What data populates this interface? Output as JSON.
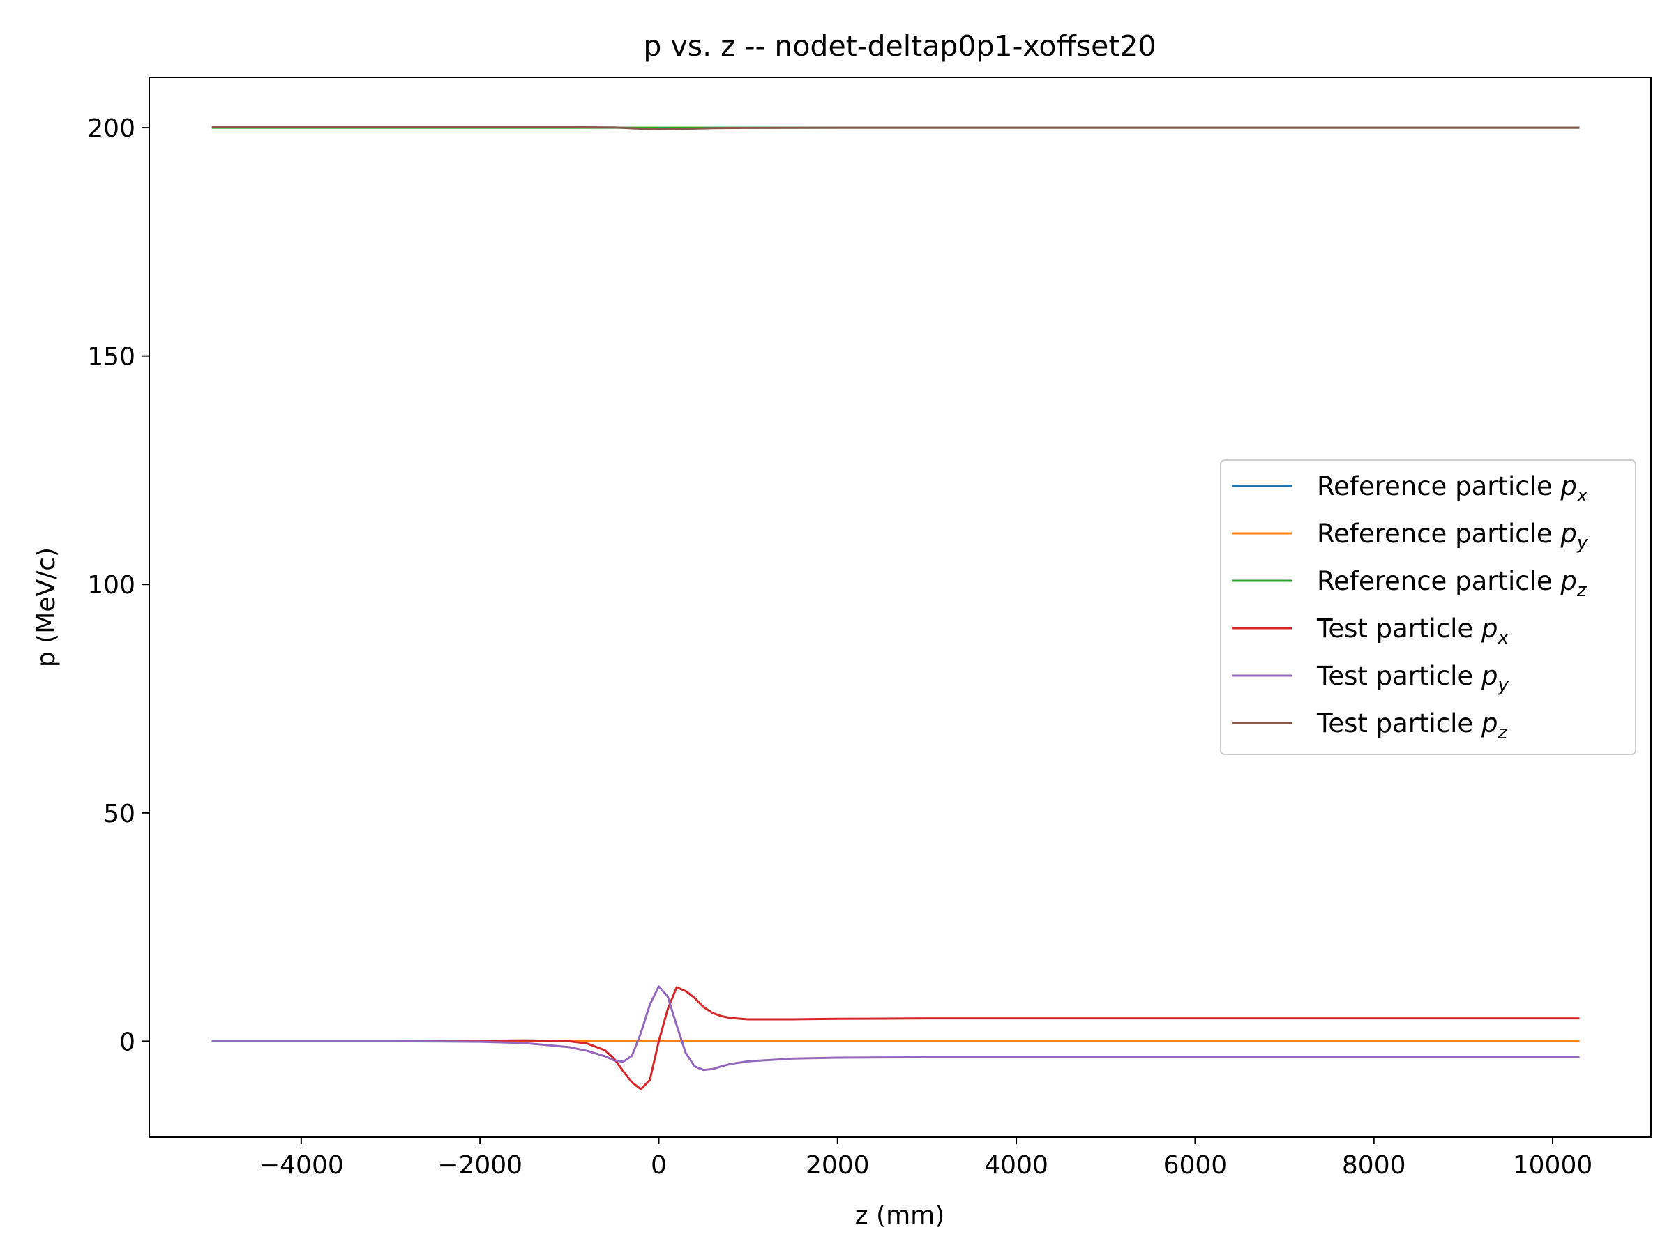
{
  "chart_data": {
    "type": "line",
    "title": "p vs. z -- nodet-deltap0p1-xoffset20",
    "xlabel": "z (mm)",
    "ylabel": "p (MeV/c)",
    "xlim": [
      -5700,
      11100
    ],
    "ylim": [
      -21,
      211
    ],
    "xticks": [
      -4000,
      -2000,
      0,
      2000,
      4000,
      6000,
      8000,
      10000
    ],
    "xtick_labels": [
      "−4000",
      "−2000",
      "0",
      "2000",
      "4000",
      "6000",
      "8000",
      "10000"
    ],
    "yticks": [
      0,
      50,
      100,
      150,
      200
    ],
    "ytick_labels": [
      "0",
      "50",
      "100",
      "150",
      "200"
    ],
    "grid": false,
    "legend_position": "center-right",
    "series": [
      {
        "name": "Reference particle p",
        "subscript": "x",
        "color": "#1f77b4",
        "x": [
          -5000,
          10300
        ],
        "y": [
          0,
          0
        ]
      },
      {
        "name": "Reference particle p",
        "subscript": "y",
        "color": "#ff7f0e",
        "x": [
          -5000,
          10300
        ],
        "y": [
          0,
          0
        ]
      },
      {
        "name": "Reference particle p",
        "subscript": "z",
        "color": "#2ca02c",
        "x": [
          -5000,
          10300
        ],
        "y": [
          200,
          200
        ]
      },
      {
        "name": "Test particle p",
        "subscript": "x",
        "color": "#d62728",
        "x": [
          -5000,
          -3000,
          -2000,
          -1500,
          -1000,
          -800,
          -600,
          -500,
          -400,
          -300,
          -200,
          -100,
          0,
          100,
          200,
          300,
          400,
          500,
          600,
          700,
          800,
          1000,
          1500,
          2000,
          3000,
          4000,
          6000,
          8000,
          10300
        ],
        "y": [
          0,
          0,
          0.1,
          0.2,
          0,
          -0.5,
          -2,
          -3.8,
          -6.5,
          -9,
          -10.5,
          -8.5,
          0,
          7,
          11.8,
          11,
          9.5,
          7.5,
          6.2,
          5.5,
          5.1,
          4.8,
          4.8,
          4.9,
          5,
          5,
          5,
          5,
          5
        ]
      },
      {
        "name": "Test particle p",
        "subscript": "y",
        "color": "#9467bd",
        "x": [
          -5000,
          -3000,
          -2000,
          -1500,
          -1000,
          -800,
          -600,
          -500,
          -400,
          -300,
          -200,
          -100,
          0,
          100,
          200,
          300,
          400,
          500,
          600,
          700,
          800,
          1000,
          1500,
          2000,
          3000,
          4000,
          6000,
          8000,
          10300
        ],
        "y": [
          0,
          0,
          -0.1,
          -0.4,
          -1.3,
          -2.1,
          -3.3,
          -4.2,
          -4.5,
          -3.2,
          1.8,
          8,
          12,
          9.8,
          3.5,
          -2.5,
          -5.5,
          -6.3,
          -6.1,
          -5.5,
          -5,
          -4.4,
          -3.8,
          -3.6,
          -3.5,
          -3.5,
          -3.5,
          -3.5,
          -3.5
        ]
      },
      {
        "name": "Test particle p",
        "subscript": "z",
        "color": "#8c564b",
        "x": [
          -5000,
          -3000,
          -1000,
          -500,
          -300,
          -100,
          0,
          200,
          400,
          600,
          1000,
          2000,
          4000,
          6000,
          8000,
          10300
        ],
        "y": [
          200.1,
          200.1,
          200.1,
          200.05,
          199.85,
          199.7,
          199.65,
          199.7,
          199.8,
          199.9,
          199.95,
          200,
          200,
          200,
          200,
          200
        ]
      }
    ]
  }
}
